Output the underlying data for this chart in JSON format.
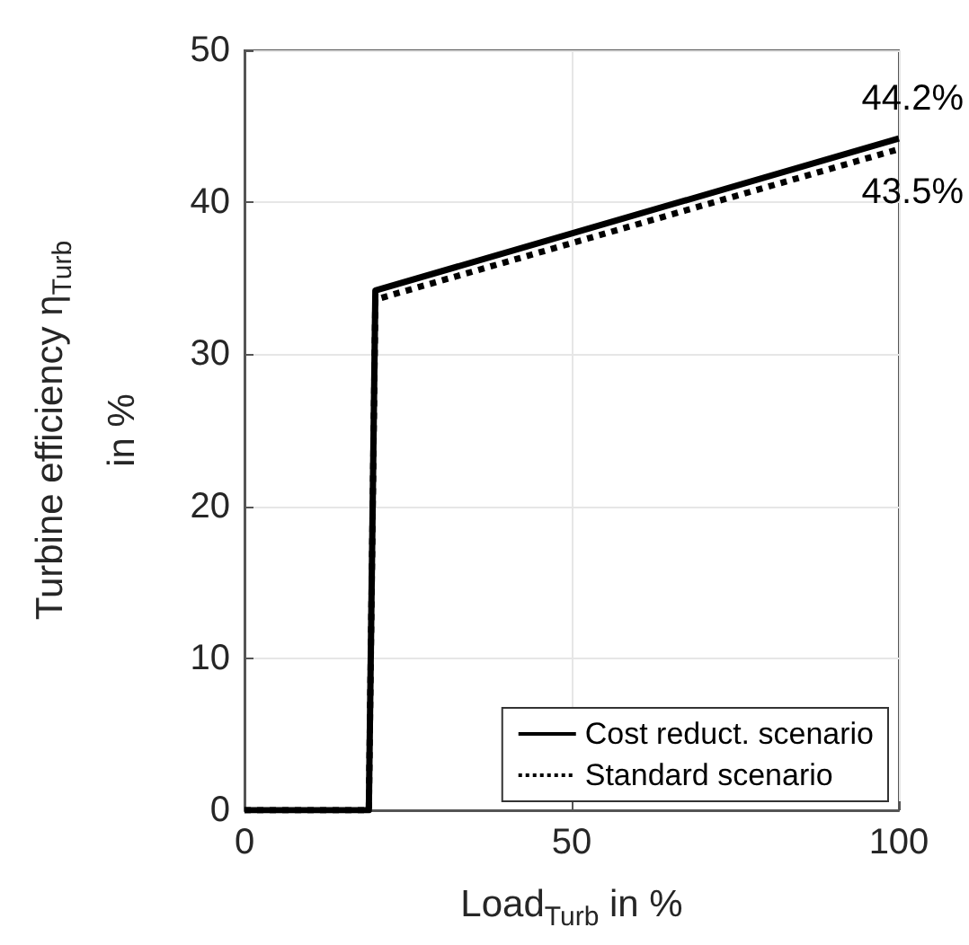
{
  "chart_data": {
    "type": "line",
    "xlabel": "Load$_{Turb}$ in %",
    "ylabel": "Turbine efficiency η$_{Turb}$ in %",
    "x": [
      0,
      19,
      20,
      100
    ],
    "series": [
      {
        "name": "Cost reduct. scenario",
        "color": "#000000",
        "values": [
          0,
          0,
          34.2,
          44.2
        ],
        "line_style": "solid"
      },
      {
        "name": "Standard scenario",
        "color": "#000000",
        "values": [
          0,
          0,
          33.6,
          43.5
        ],
        "line_style": "dotted"
      }
    ],
    "xlim": [
      0,
      100
    ],
    "xticks": [
      0,
      50,
      100
    ],
    "ylim": [
      0,
      50
    ],
    "yticks": [
      0,
      10,
      20,
      30,
      40,
      50
    ],
    "grid": true,
    "legend": "bottom right",
    "marker": "none",
    "annotations": [
      {
        "text": "44.2%",
        "x": 100,
        "y": 44.2
      },
      {
        "text": "43.5%",
        "x": 100,
        "y": 43.5
      }
    ]
  }
}
